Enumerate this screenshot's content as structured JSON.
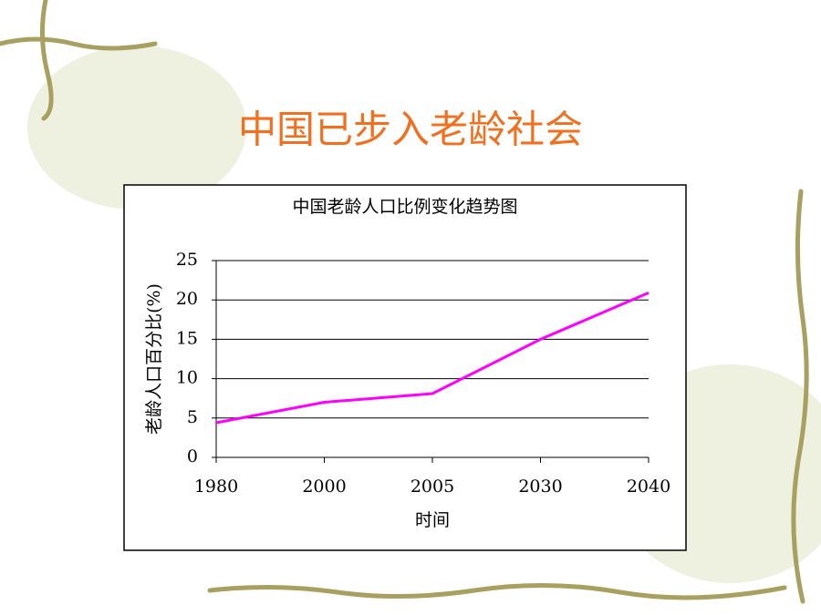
{
  "slide_title": "中国已步入老龄社会",
  "chart_data": {
    "type": "line",
    "title": "中国老龄人口比例变化趋势图",
    "x_label": "时间",
    "y_label": "老龄人口百分比(%)",
    "categories": [
      "1980",
      "2000",
      "2005",
      "2030",
      "2040"
    ],
    "values": [
      4.4,
      7,
      8.1,
      15,
      20.9
    ],
    "color": "#ff00ff",
    "ylim": [
      0,
      25
    ],
    "yticks": [
      0,
      5,
      10,
      15,
      20,
      25
    ],
    "grid": true
  }
}
